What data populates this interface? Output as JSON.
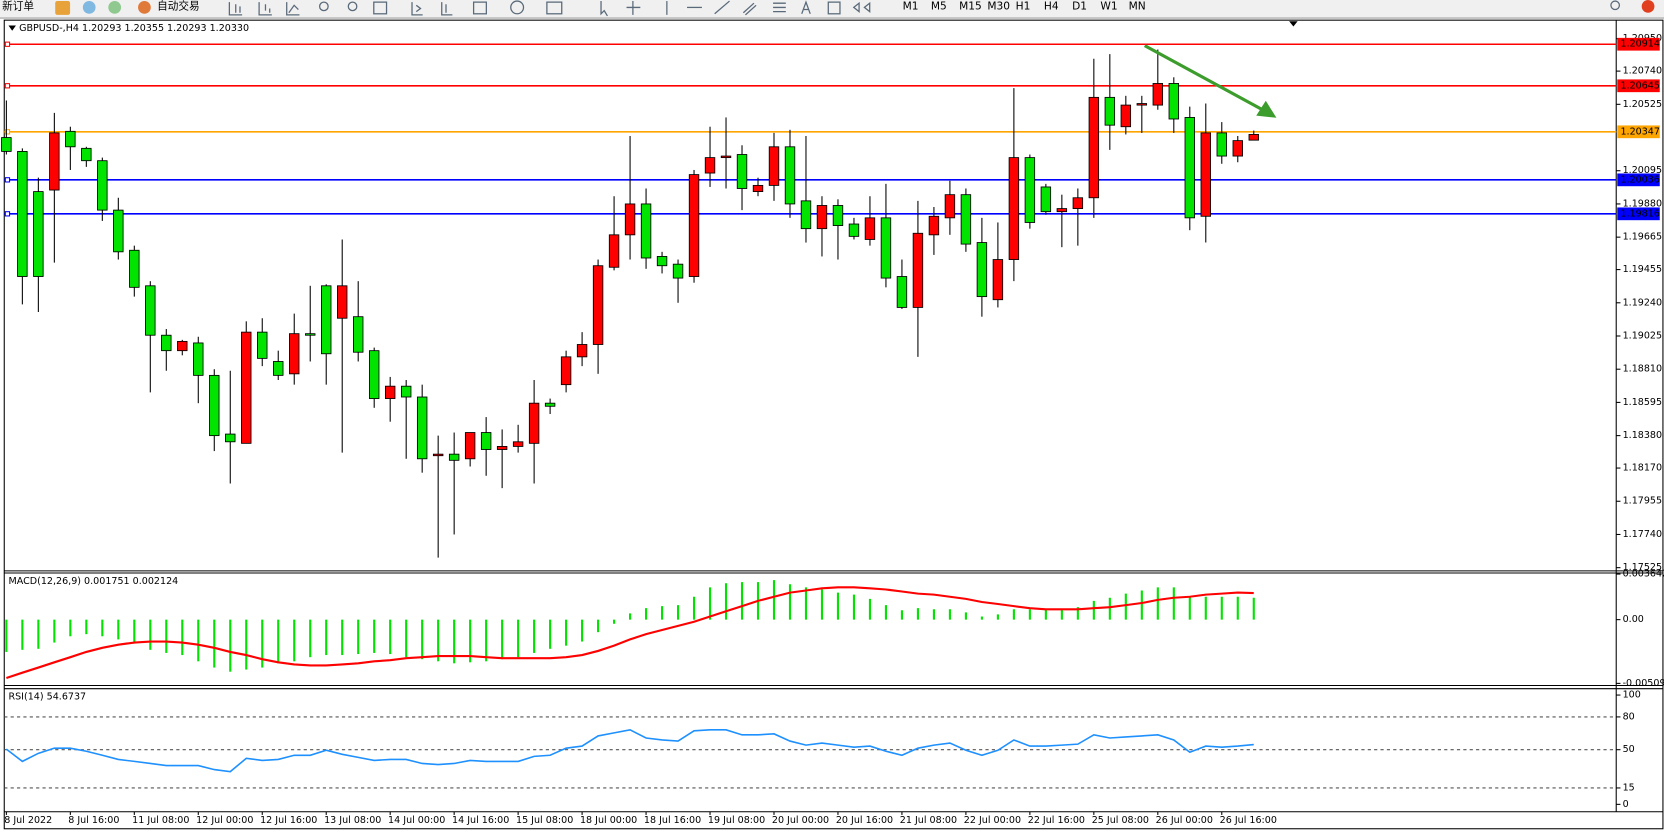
{
  "toolbar": {
    "new_order": "新订单",
    "auto_trading": "自动交易",
    "timeframes": [
      "M1",
      "M5",
      "M15",
      "M30",
      "H1",
      "H4",
      "D1",
      "W1",
      "MN"
    ]
  },
  "chart_data": [
    {
      "type": "candlestick",
      "title": "GBPUSD-,H4  1.20293 1.20355 1.20293 1.20330",
      "categories": [
        "8 Jul 2022",
        null,
        null,
        null,
        "8 Jul 16:00",
        null,
        null,
        null,
        "11 Jul 08:00",
        null,
        null,
        null,
        "12 Jul 00:00",
        null,
        null,
        null,
        "12 Jul 16:00",
        null,
        null,
        null,
        "13 Jul 08:00",
        null,
        null,
        null,
        "14 Jul 00:00",
        null,
        null,
        null,
        "14 Jul 16:00",
        null,
        null,
        null,
        "15 Jul 08:00",
        null,
        null,
        null,
        "18 Jul 00:00",
        null,
        null,
        null,
        "18 Jul 16:00",
        null,
        null,
        null,
        "19 Jul 08:00",
        null,
        null,
        null,
        "20 Jul 00:00",
        null,
        null,
        null,
        "20 Jul 16:00",
        null,
        null,
        null,
        "21 Jul 08:00",
        null,
        null,
        null,
        "22 Jul 00:00",
        null,
        null,
        null,
        "22 Jul 16:00",
        null,
        null,
        null,
        "25 Jul 08:00",
        null,
        null,
        null,
        "26 Jul 00:00",
        null,
        null,
        null,
        "26 Jul 16:00",
        null,
        null
      ],
      "open": [
        1.2031,
        1.2022,
        1.1996,
        1.1997,
        1.2035,
        1.2024,
        1.2016,
        1.1984,
        1.1958,
        1.1935,
        1.1903,
        1.1893,
        1.1898,
        1.1877,
        1.1839,
        1.1833,
        1.1905,
        1.1886,
        1.1878,
        1.1904,
        1.1935,
        1.1914,
        1.1915,
        1.1893,
        1.1862,
        1.187,
        1.1863,
        1.1825,
        1.1826,
        1.1823,
        1.184,
        1.1829,
        1.1831,
        1.1833,
        1.1859,
        1.1871,
        1.1889,
        1.1897,
        1.1947,
        1.1968,
        1.1988,
        1.1954,
        1.1949,
        1.1941,
        1.2008,
        1.2018,
        1.202,
        1.1996,
        1.2,
        1.2025,
        1.199,
        1.1972,
        1.1987,
        1.1975,
        1.1965,
        1.1979,
        1.1941,
        1.1921,
        1.1968,
        1.1979,
        1.1994,
        1.1963,
        1.1926,
        1.1952,
        1.2018,
        1.1999,
        1.1983,
        1.1985,
        1.1992,
        1.2057,
        1.2038,
        1.2052,
        1.2052,
        1.2066,
        1.2044,
        1.198,
        1.2034,
        1.2019,
        1.20293
      ],
      "high": [
        1.2055,
        1.2024,
        1.2005,
        1.2047,
        1.2038,
        1.2025,
        1.2018,
        1.1992,
        1.1961,
        1.1938,
        1.1907,
        1.19,
        1.1902,
        1.1881,
        1.188,
        1.1912,
        1.1914,
        1.1893,
        1.1917,
        1.1935,
        1.1936,
        1.1965,
        1.1938,
        1.1895,
        1.1876,
        1.1874,
        1.1871,
        1.1838,
        1.184,
        1.184,
        1.185,
        1.1842,
        1.1845,
        1.1874,
        1.1862,
        1.1893,
        1.1905,
        1.1952,
        1.1993,
        1.2032,
        1.1998,
        1.1957,
        1.1952,
        1.201,
        1.2038,
        1.2044,
        1.2026,
        1.2005,
        1.2034,
        1.2036,
        1.2032,
        1.1993,
        1.1991,
        1.1979,
        1.1993,
        1.2001,
        1.1952,
        1.199,
        1.1986,
        1.2003,
        1.1998,
        1.1979,
        1.1976,
        1.2063,
        1.202,
        1.2001,
        1.1994,
        1.1998,
        1.2082,
        1.2085,
        1.2058,
        1.2058,
        1.2088,
        1.207,
        1.2051,
        1.2053,
        1.2041,
        1.2032,
        1.20355
      ],
      "low": [
        1.202,
        1.1923,
        1.1918,
        1.195,
        1.201,
        1.2012,
        1.1977,
        1.1952,
        1.1928,
        1.1866,
        1.188,
        1.189,
        1.1859,
        1.1828,
        1.1807,
        1.1833,
        1.1883,
        1.1874,
        1.1871,
        1.1886,
        1.1871,
        1.1827,
        1.1886,
        1.1856,
        1.1847,
        1.1823,
        1.1814,
        1.1759,
        1.1774,
        1.1818,
        1.1812,
        1.1804,
        1.1827,
        1.1807,
        1.1852,
        1.1866,
        1.1883,
        1.1878,
        1.1945,
        1.1952,
        1.1946,
        1.1943,
        1.1924,
        1.1937,
        1.1999,
        1.1998,
        1.1984,
        1.1993,
        1.199,
        1.1979,
        1.1963,
        1.1954,
        1.1952,
        1.1965,
        1.1961,
        1.1934,
        1.192,
        1.1889,
        1.1955,
        1.1968,
        1.1957,
        1.1915,
        1.1921,
        1.1938,
        1.1972,
        1.1981,
        1.196,
        1.1961,
        1.1979,
        1.2023,
        1.2033,
        1.2034,
        1.2049,
        1.2034,
        1.1971,
        1.1963,
        1.2014,
        1.2015,
        1.20293
      ],
      "close": [
        1.2022,
        1.1941,
        1.1941,
        1.2034,
        1.2025,
        1.2016,
        1.1984,
        1.1957,
        1.1934,
        1.1903,
        1.1893,
        1.1899,
        1.1877,
        1.1838,
        1.1834,
        1.1905,
        1.1888,
        1.1877,
        1.1904,
        1.1903,
        1.1891,
        1.1935,
        1.1892,
        1.1862,
        1.187,
        1.1863,
        1.1823,
        1.1826,
        1.1822,
        1.184,
        1.1829,
        1.1831,
        1.1834,
        1.1859,
        1.1857,
        1.1889,
        1.1897,
        1.1948,
        1.1968,
        1.1988,
        1.1953,
        1.1948,
        1.194,
        1.2007,
        1.2018,
        1.2019,
        1.1998,
        1.2,
        1.2025,
        1.1988,
        1.1972,
        1.1987,
        1.1974,
        1.1967,
        1.1979,
        1.194,
        1.1921,
        1.1969,
        1.198,
        1.1994,
        1.1962,
        1.1928,
        1.1952,
        1.2018,
        1.1976,
        1.1983,
        1.1985,
        1.1992,
        1.2057,
        1.2039,
        1.2052,
        1.2053,
        1.2066,
        1.2043,
        1.1979,
        1.2034,
        1.2019,
        1.2029,
        1.2033
      ],
      "up_color": "#ff0000",
      "down_color": "#00e400",
      "ylim": [
        1.17511,
        1.21063
      ],
      "yticks": [
        {
          "value": 1.2095,
          "label": "1.20950"
        },
        {
          "value": 1.2074,
          "label": "1.20740"
        },
        1.20525,
        1.20095,
        {
          "value": 1.1988,
          "label": "1.19880"
        },
        1.19665,
        1.19455,
        {
          "value": 1.1924,
          "label": "1.19240"
        },
        1.19025,
        {
          "value": 1.1881,
          "label": "1.18810"
        },
        1.18595,
        {
          "value": 1.1838,
          "label": "1.18380"
        },
        {
          "value": 1.1817,
          "label": "1.18170"
        },
        1.17955,
        {
          "value": 1.1774,
          "label": "1.17740"
        },
        1.17525
      ],
      "hlines": [
        {
          "value": 1.20914,
          "color": "#ff0000"
        },
        {
          "value": 1.20645,
          "color": "#ff0000"
        },
        {
          "value": 1.20347,
          "color": "#ffa500"
        },
        {
          "value": 1.20036,
          "color": "#0000ff"
        },
        {
          "value": 1.19816,
          "color": "#0000ff"
        }
      ]
    },
    {
      "type": "combo",
      "title": "MACD(12,26,9) 0.001751 0.002124",
      "series": [
        {
          "type": "bar",
          "color": "#00e400",
          "values": [
            -0.00258,
            -0.00241,
            -0.00233,
            -0.00183,
            -0.00133,
            -0.00116,
            -0.00133,
            -0.00158,
            -0.00191,
            -0.00241,
            -0.00266,
            -0.00283,
            -0.00333,
            -0.00383,
            -0.00416,
            -0.00399,
            -0.00383,
            -0.00349,
            -0.00333,
            -0.003,
            -0.00283,
            -0.00283,
            -0.00275,
            -0.00266,
            -0.00275,
            -0.003,
            -0.00316,
            -0.00333,
            -0.00349,
            -0.00341,
            -0.00333,
            -0.00316,
            -0.003,
            -0.00266,
            -0.00233,
            -0.00208,
            -0.00175,
            -0.001,
            -0.00033,
            0.0005,
            0.00092,
            0.00108,
            0.00116,
            0.00183,
            0.00258,
            0.00291,
            0.003,
            0.003,
            0.00316,
            0.00283,
            0.00258,
            0.00241,
            0.00216,
            0.002,
            0.00166,
            0.00116,
            0.00075,
            0.00092,
            0.00083,
            0.00083,
            0.00058,
            0.00025,
            0.00042,
            0.00083,
            0.00083,
            0.00083,
            0.00083,
            0.001,
            0.0015,
            0.00175,
            0.00208,
            0.00233,
            0.00258,
            0.00258,
            0.00183,
            0.00183,
            0.00183,
            0.00183,
            0.001751
          ]
        },
        {
          "type": "line",
          "color": "#ff0000",
          "values": [
            -0.00466,
            -0.00424,
            -0.00383,
            -0.00341,
            -0.003,
            -0.00258,
            -0.00225,
            -0.002,
            -0.00183,
            -0.00175,
            -0.00175,
            -0.00183,
            -0.002,
            -0.00225,
            -0.00258,
            -0.00283,
            -0.00316,
            -0.00341,
            -0.00358,
            -0.00366,
            -0.00366,
            -0.00358,
            -0.00349,
            -0.00333,
            -0.00324,
            -0.00308,
            -0.003,
            -0.00291,
            -0.00291,
            -0.00291,
            -0.003,
            -0.00308,
            -0.00308,
            -0.00308,
            -0.00308,
            -0.003,
            -0.00283,
            -0.0025,
            -0.00208,
            -0.00158,
            -0.00116,
            -0.00083,
            -0.0005,
            -0.00017,
            0.00025,
            0.00067,
            0.00108,
            0.0015,
            0.00183,
            0.00216,
            0.00233,
            0.0025,
            0.00258,
            0.00258,
            0.0025,
            0.00241,
            0.00225,
            0.00208,
            0.002,
            0.00183,
            0.00166,
            0.00141,
            0.00125,
            0.00108,
            0.00092,
            0.00083,
            0.00083,
            0.00083,
            0.00092,
            0.001,
            0.00116,
            0.00133,
            0.00158,
            0.00175,
            0.00183,
            0.002,
            0.00208,
            0.00216,
            0.002124
          ]
        }
      ],
      "ylim": [
        -0.005094,
        0.003642
      ],
      "yticks": [
        0.003642,
        {
          "value": 0,
          "label": "0.00"
        },
        -0.005094
      ]
    },
    {
      "type": "line",
      "title": "RSI(14) 54.6737",
      "color": "#1e90ff",
      "values": [
        50.5,
        39.3,
        46.7,
        51.4,
        51.4,
        48.6,
        44.9,
        41.1,
        39.3,
        37.4,
        35.5,
        35.5,
        35.5,
        31.8,
        29.9,
        42.1,
        40.2,
        41.1,
        44.9,
        44.9,
        49.5,
        45.8,
        43.0,
        40.2,
        41.1,
        41.1,
        37.4,
        36.4,
        37.4,
        40.2,
        39.3,
        39.3,
        39.3,
        43.9,
        44.9,
        51.4,
        53.3,
        62.6,
        65.4,
        68.2,
        60.7,
        58.9,
        57.9,
        67.3,
        68.2,
        68.2,
        63.6,
        63.6,
        64.5,
        57.9,
        54.2,
        56.1,
        54.2,
        52.3,
        53.3,
        48.6,
        44.9,
        51.4,
        54.2,
        56.1,
        49.5,
        44.9,
        49.5,
        58.9,
        53.3,
        53.3,
        54.2,
        55.1,
        63.6,
        60.7,
        61.7,
        62.6,
        63.6,
        58.9,
        47.7,
        53.3,
        52.3,
        53.3,
        54.6737
      ],
      "ylim": [
        0,
        100
      ],
      "yticks": [
        100,
        80,
        50,
        15,
        0
      ],
      "grid": "dashed"
    }
  ]
}
